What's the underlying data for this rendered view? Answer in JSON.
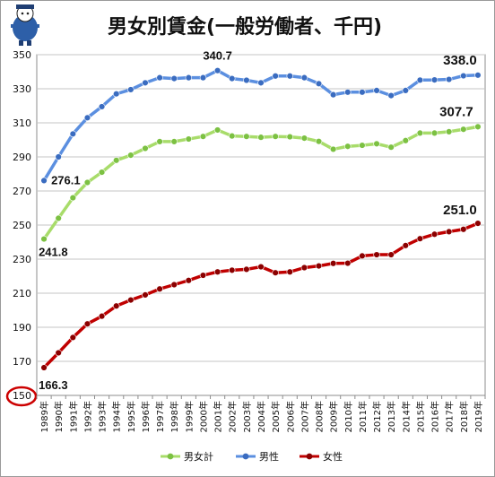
{
  "chart_data": {
    "type": "line",
    "title": "男女別賃金(一般労働者、千円)",
    "x": [
      "1989年",
      "1990年",
      "1991年",
      "1992年",
      "1993年",
      "1994年",
      "1995年",
      "1996年",
      "1997年",
      "1998年",
      "1999年",
      "2000年",
      "2001年",
      "2002年",
      "2003年",
      "2004年",
      "2005年",
      "2006年",
      "2007年",
      "2008年",
      "2009年",
      "2010年",
      "2011年",
      "2012年",
      "2013年",
      "2014年",
      "2015年",
      "2016年",
      "2017年",
      "2018年",
      "2019年"
    ],
    "ylim": [
      150,
      350
    ],
    "yticks": [
      150,
      170,
      190,
      210,
      230,
      250,
      270,
      290,
      310,
      330,
      350
    ],
    "grid": true,
    "legend_position": "bottom",
    "series": [
      {
        "name": "男女計",
        "color": "#92d050",
        "line": "#a8dc6a",
        "marker": "#7cc142",
        "values": [
          241.8,
          254.0,
          266.0,
          275.0,
          281.0,
          288.0,
          291.0,
          295.0,
          299.0,
          299.0,
          300.5,
          302.0,
          305.8,
          302.3,
          302.0,
          301.5,
          302.0,
          301.8,
          301.0,
          299.1,
          294.5,
          296.2,
          296.8,
          297.7,
          295.7,
          299.6,
          304.0,
          304.0,
          304.8,
          306.2,
          307.7
        ]
      },
      {
        "name": "男性",
        "color": "#4a7fd4",
        "line": "#5b8fe0",
        "marker": "#3a6cc0",
        "values": [
          276.1,
          290.0,
          303.5,
          313.0,
          319.5,
          327.0,
          329.5,
          333.5,
          336.5,
          336.0,
          336.5,
          336.5,
          340.7,
          336.0,
          335.0,
          333.5,
          337.5,
          337.5,
          336.5,
          333.0,
          326.5,
          328.0,
          328.0,
          329.0,
          326.0,
          329.0,
          335.1,
          335.2,
          335.5,
          337.6,
          338.0
        ]
      },
      {
        "name": "女性",
        "color": "#c00000",
        "line": "#c00000",
        "marker": "#8b0000",
        "values": [
          166.3,
          175.0,
          184.0,
          192.0,
          196.5,
          202.5,
          206.0,
          209.0,
          212.5,
          215.0,
          217.5,
          220.5,
          222.5,
          223.5,
          224.0,
          225.5,
          222.0,
          222.5,
          225.0,
          226.0,
          227.5,
          227.6,
          231.9,
          232.6,
          232.6,
          238.0,
          242.0,
          244.6,
          246.1,
          247.5,
          251.0
        ]
      }
    ],
    "annotations": [
      {
        "text": "276.1",
        "series": 1,
        "index": 0
      },
      {
        "text": "241.8",
        "series": 0,
        "index": 0
      },
      {
        "text": "166.3",
        "series": 2,
        "index": 0
      },
      {
        "text": "340.7",
        "series": 1,
        "index": 12
      },
      {
        "text": "338.0",
        "series": 1,
        "index": 30
      },
      {
        "text": "307.7",
        "series": 0,
        "index": 30
      },
      {
        "text": "251.0",
        "series": 2,
        "index": 30
      }
    ],
    "highlight": {
      "tick_value": 150,
      "color": "#cc0000"
    }
  }
}
